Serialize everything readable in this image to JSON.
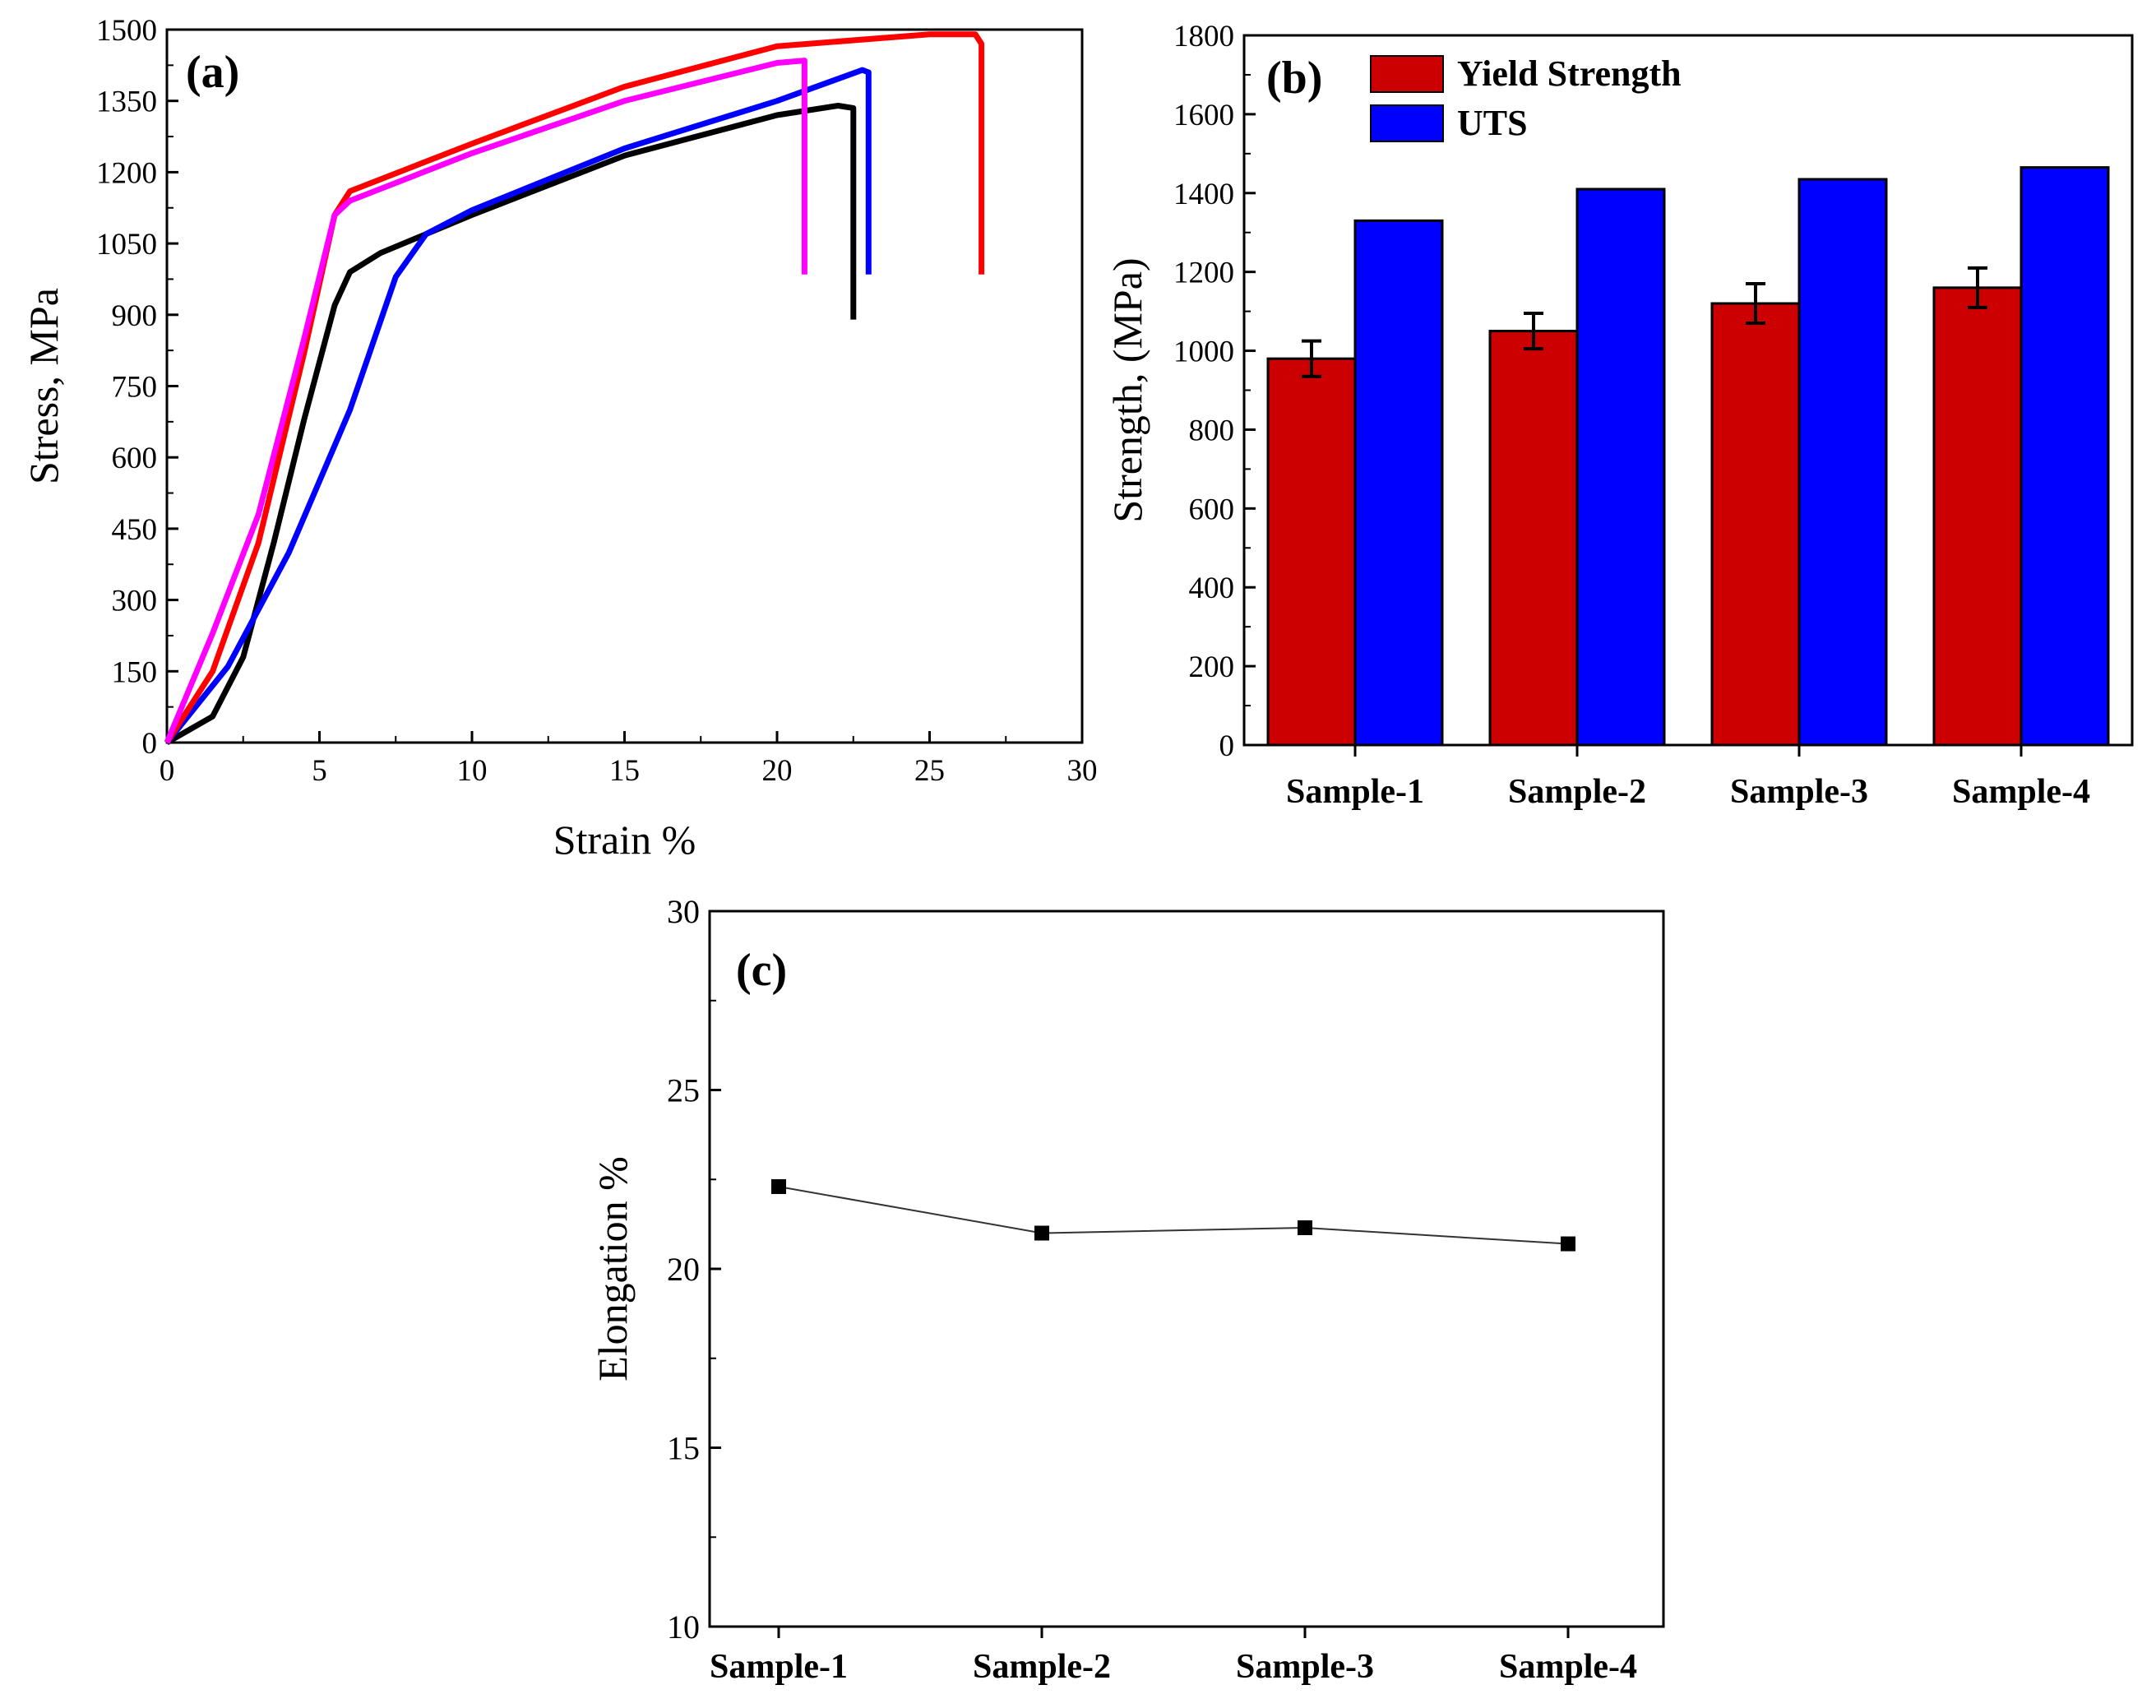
{
  "chart_data": [
    {
      "panel": "(a)",
      "type": "line",
      "xlabel": "Strain %",
      "ylabel": "Stress, MPa",
      "xlim": [
        0,
        30
      ],
      "ylim": [
        0,
        1500
      ],
      "xticks": [
        "0",
        "5",
        "10",
        "15",
        "20",
        "25",
        "30"
      ],
      "yticks": [
        "0",
        "150",
        "300",
        "450",
        "600",
        "750",
        "900",
        "1050",
        "1200",
        "1350",
        "1500"
      ],
      "grid": false,
      "series": [
        {
          "color": "#000000",
          "points": [
            [
              0,
              0
            ],
            [
              1.5,
              55
            ],
            [
              2.5,
              180
            ],
            [
              3.5,
              420
            ],
            [
              4.5,
              680
            ],
            [
              5.5,
              920
            ],
            [
              6,
              990
            ],
            [
              7,
              1030
            ],
            [
              10,
              1110
            ],
            [
              15,
              1235
            ],
            [
              20,
              1320
            ],
            [
              22,
              1340
            ],
            [
              22.5,
              1335
            ],
            [
              22.5,
              890
            ]
          ]
        },
        {
          "color": "#0000ff",
          "points": [
            [
              0,
              0
            ],
            [
              2,
              160
            ],
            [
              4,
              400
            ],
            [
              6,
              700
            ],
            [
              7.5,
              980
            ],
            [
              8.5,
              1070
            ],
            [
              10,
              1120
            ],
            [
              15,
              1250
            ],
            [
              20,
              1350
            ],
            [
              22.8,
              1415
            ],
            [
              23,
              1410
            ],
            [
              23,
              985
            ]
          ]
        },
        {
          "color": "#ff0000",
          "points": [
            [
              0,
              0
            ],
            [
              1.5,
              150
            ],
            [
              3,
              420
            ],
            [
              4.5,
              820
            ],
            [
              5.5,
              1110
            ],
            [
              6,
              1160
            ],
            [
              8,
              1210
            ],
            [
              10,
              1260
            ],
            [
              15,
              1380
            ],
            [
              20,
              1465
            ],
            [
              25,
              1490
            ],
            [
              26.5,
              1490
            ],
            [
              26.7,
              1470
            ],
            [
              26.7,
              985
            ]
          ]
        },
        {
          "color": "#ff00ff",
          "points": [
            [
              0,
              0
            ],
            [
              1.5,
              230
            ],
            [
              3,
              480
            ],
            [
              4.5,
              850
            ],
            [
              5.5,
              1110
            ],
            [
              6,
              1140
            ],
            [
              8,
              1190
            ],
            [
              10,
              1240
            ],
            [
              15,
              1350
            ],
            [
              20,
              1430
            ],
            [
              20.9,
              1435
            ],
            [
              20.9,
              985
            ]
          ]
        }
      ]
    },
    {
      "panel": "(b)",
      "type": "bar",
      "ylabel": "Strength, (MPa)",
      "ylim": [
        0,
        1800
      ],
      "yticks": [
        "0",
        "200",
        "400",
        "600",
        "800",
        "1000",
        "1200",
        "1400",
        "1600",
        "1800"
      ],
      "categories": [
        "Sample-1",
        "Sample-2",
        "Sample-3",
        "Sample-4"
      ],
      "legend_position": "top-left",
      "series": [
        {
          "name": "Yield Strength",
          "color": "#cc0000",
          "values": [
            980,
            1050,
            1120,
            1160
          ],
          "errors": [
            45,
            45,
            50,
            50
          ]
        },
        {
          "name": "UTS",
          "color": "#0000ff",
          "values": [
            1330,
            1410,
            1435,
            1465
          ]
        }
      ]
    },
    {
      "panel": "(c)",
      "type": "line",
      "ylabel": "Elongation %",
      "ylim": [
        10,
        30
      ],
      "yticks": [
        "10",
        "15",
        "20",
        "25",
        "30"
      ],
      "categories": [
        "Sample-1",
        "Sample-2",
        "Sample-3",
        "Sample-4"
      ],
      "values": [
        22.3,
        21.0,
        21.15,
        20.7
      ],
      "marker": "square",
      "line_color": "#333333"
    }
  ]
}
